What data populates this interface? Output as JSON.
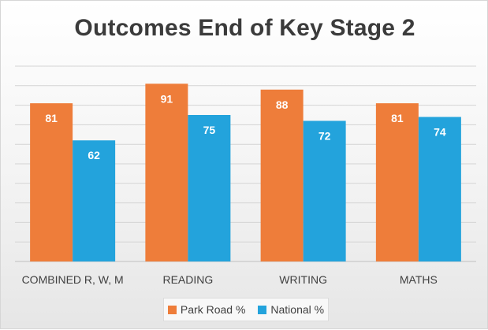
{
  "chart_data": {
    "type": "bar",
    "title": "Outcomes End of Key Stage 2",
    "categories": [
      "COMBINED R, W, M",
      "READING",
      "WRITING",
      "MATHS"
    ],
    "series": [
      {
        "name": "Park Road %",
        "values": [
          81,
          91,
          88,
          81
        ],
        "color": "#ee7d3a"
      },
      {
        "name": "National %",
        "values": [
          62,
          75,
          72,
          74
        ],
        "color": "#23a3dc"
      }
    ],
    "ylim": [
      0,
      100
    ],
    "grid": true,
    "legend_position": "bottom",
    "data_labels": "inside-top",
    "data_label_color": "#ffffff"
  }
}
